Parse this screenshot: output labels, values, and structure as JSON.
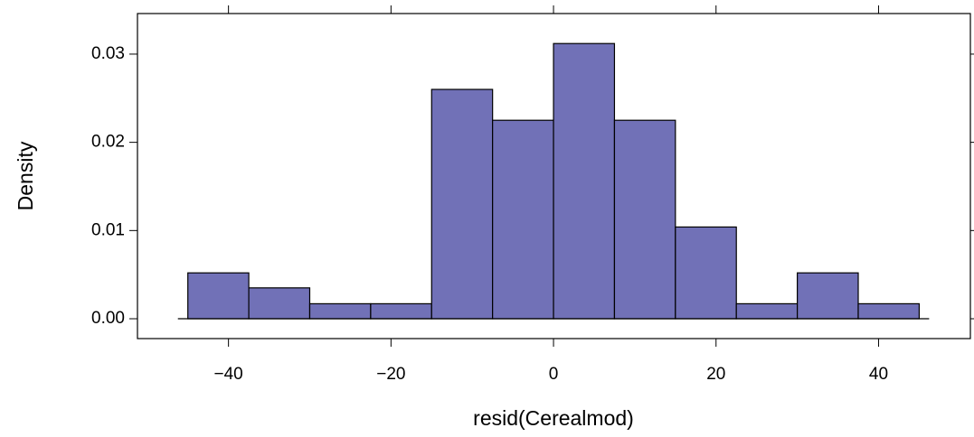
{
  "chart_data": {
    "type": "histogram",
    "xlabel": "resid(Cerealmod)",
    "ylabel": "Density",
    "bins": [
      -45,
      -37.5,
      -30,
      -22.5,
      -15,
      -7.5,
      0,
      7.5,
      15,
      22.5,
      30,
      37.5,
      45
    ],
    "values": [
      0.0052,
      0.0035,
      0.0017,
      0.0017,
      0.026,
      0.0225,
      0.0312,
      0.0225,
      0.0104,
      0.0017,
      0.0052,
      0.0017
    ],
    "color": "#7171b7",
    "xlim": [
      -51.2,
      51.3
    ],
    "ylim": [
      -0.00225,
      0.0346
    ],
    "xticks": [
      {
        "value": -40,
        "label": "−40"
      },
      {
        "value": -20,
        "label": "−20"
      },
      0,
      20,
      40
    ],
    "yticks": [
      {
        "value": 0,
        "label": "0.00"
      },
      {
        "value": 0.01,
        "label": "0.01"
      },
      {
        "value": 0.02,
        "label": "0.02"
      },
      {
        "value": 0.03,
        "label": "0.03"
      }
    ]
  }
}
